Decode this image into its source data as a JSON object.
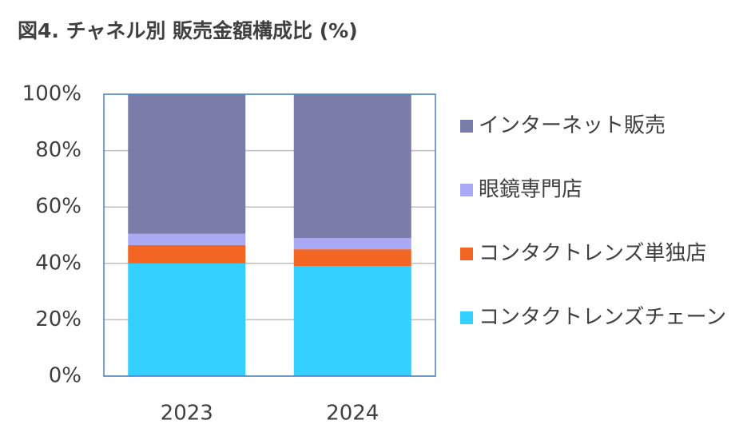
{
  "chart_data": {
    "type": "stacked_bar",
    "title": "図4. チャネル別 販売金額構成比 (%)",
    "categories": [
      "2023",
      "2024"
    ],
    "series": [
      {
        "name": "コンタクトレンズチェーン",
        "color": "#33cfff",
        "values": [
          40,
          39
        ]
      },
      {
        "name": "コンタクトレンズ単独店",
        "color": "#f26522",
        "values": [
          6.5,
          6
        ]
      },
      {
        "name": "眼鏡専門店",
        "color": "#a9a9f5",
        "values": [
          4,
          4
        ]
      },
      {
        "name": "インターネット販売",
        "color": "#7a7ca9",
        "values": [
          49.5,
          51
        ]
      }
    ],
    "ylim": [
      0,
      100
    ],
    "yticks": [
      {
        "value": 0,
        "label": "0%"
      },
      {
        "value": 20,
        "label": "20%"
      },
      {
        "value": 40,
        "label": "40%"
      },
      {
        "value": 60,
        "label": "60%"
      },
      {
        "value": 80,
        "label": "80%"
      },
      {
        "value": 100,
        "label": "100%"
      }
    ],
    "grid": true,
    "legend": "right"
  }
}
